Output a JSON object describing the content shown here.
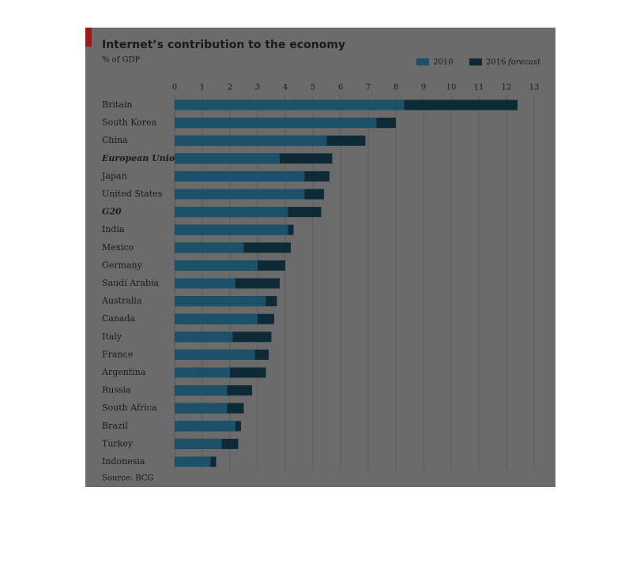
{
  "chart_data": {
    "type": "bar",
    "orientation": "horizontal",
    "title": "Internet’s contribution to the economy",
    "subtitle": "% of GDP",
    "source": "Source: BCG",
    "legend_note": "forecast",
    "categories": [
      "Britain",
      "South Korea",
      "China",
      "European Union",
      "Japan",
      "United States",
      "G20",
      "India",
      "Mexico",
      "Germany",
      "Saudi Arabia",
      "Australia",
      "Canada",
      "Italy",
      "France",
      "Argentina",
      "Russia",
      "South Africa",
      "Brazil",
      "Turkey",
      "Indonesia"
    ],
    "italic_categories": [
      "European Union",
      "G20"
    ],
    "series": [
      {
        "name": "2010",
        "color": "#1d5069",
        "values": [
          8.3,
          7.3,
          5.5,
          3.8,
          4.7,
          4.7,
          4.1,
          4.1,
          2.5,
          3.0,
          2.2,
          3.3,
          3.0,
          2.1,
          2.9,
          2.0,
          1.9,
          1.9,
          2.2,
          1.7,
          1.3
        ]
      },
      {
        "name": "2016",
        "color": "#0e2a37",
        "values": [
          12.4,
          8.0,
          6.9,
          5.7,
          5.6,
          5.4,
          5.3,
          4.3,
          4.2,
          4.0,
          3.8,
          3.7,
          3.6,
          3.5,
          3.4,
          3.3,
          2.8,
          2.5,
          2.4,
          2.3,
          1.5
        ]
      }
    ],
    "xlim": [
      0,
      13
    ],
    "xticks": [
      0,
      1,
      2,
      3,
      4,
      5,
      6,
      7,
      8,
      9,
      10,
      11,
      12,
      13
    ],
    "grid": true
  }
}
